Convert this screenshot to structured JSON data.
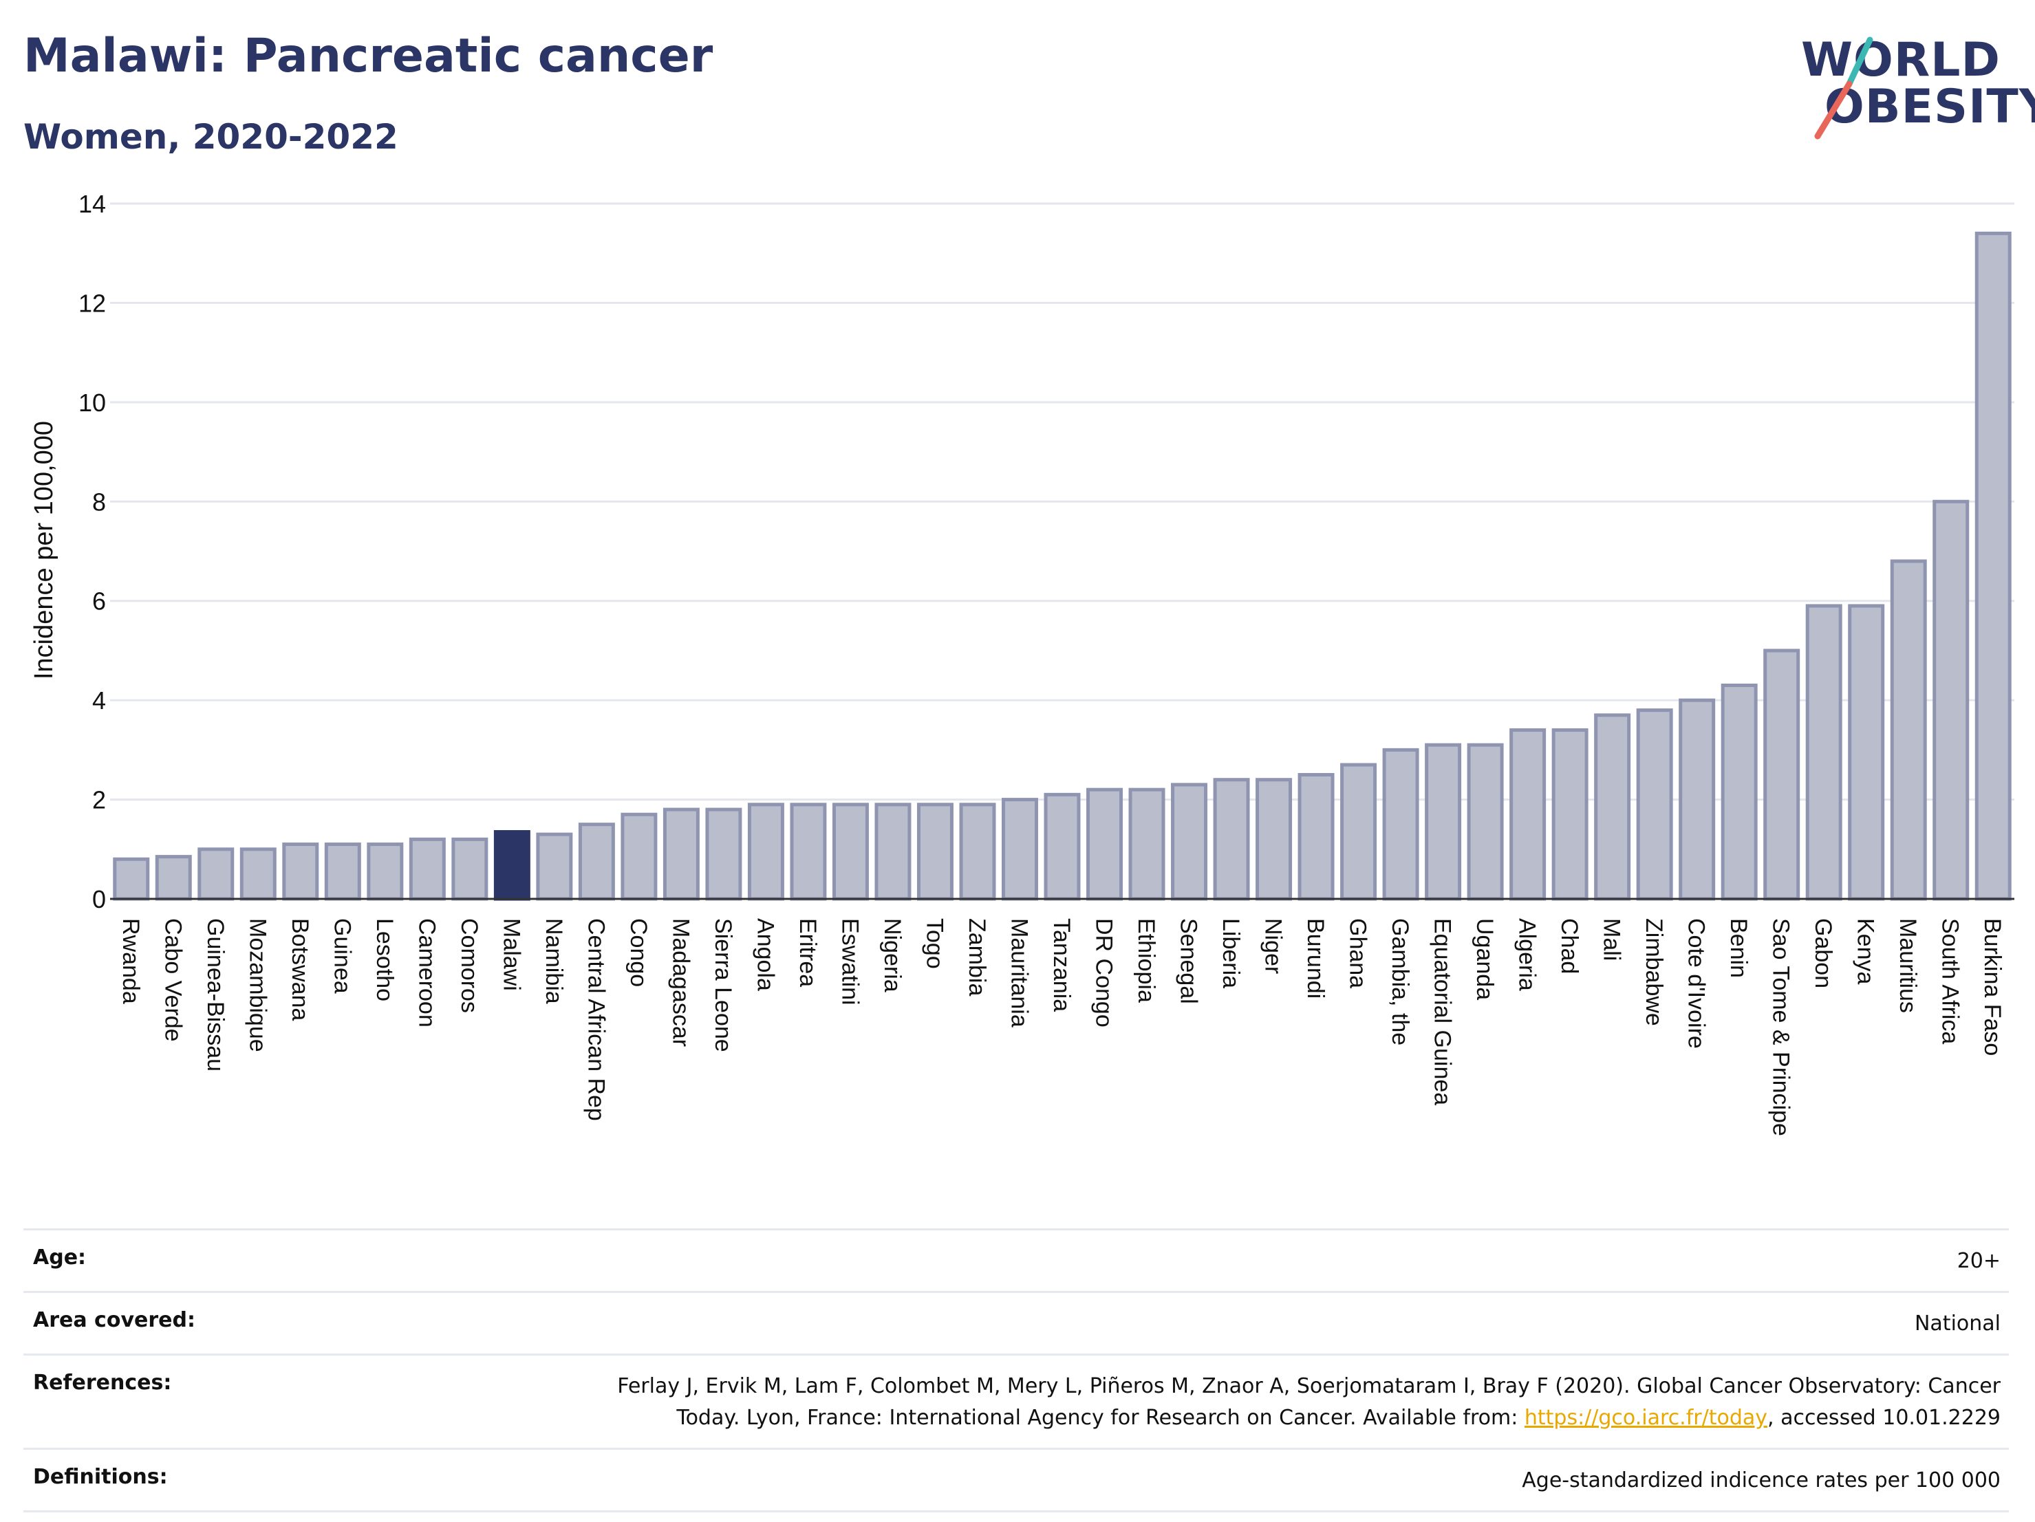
{
  "header": {
    "title": "Malawi: Pancreatic cancer",
    "subtitle": "Women, 2020-2022"
  },
  "logo": {
    "line1": "WORLD",
    "line2": "OBESITY",
    "accent_teal": "#3bb8b3",
    "accent_red": "#e8665a"
  },
  "colors": {
    "bar": "#b9bdcc",
    "bar_border": "#8f95b0",
    "highlight": "#2b3566"
  },
  "chart_data": {
    "type": "bar",
    "ylabel": "Incidence per 100,000",
    "ylim": [
      0,
      14
    ],
    "yticks": [
      0,
      2,
      4,
      6,
      8,
      10,
      12,
      14
    ],
    "highlight": "Malawi",
    "grid": true,
    "categories": [
      "Rwanda",
      "Cabo Verde",
      "Guinea-Bissau",
      "Mozambique",
      "Botswana",
      "Guinea",
      "Lesotho",
      "Cameroon",
      "Comoros",
      "Malawi",
      "Namibia",
      "Central African Rep",
      "Congo",
      "Madagascar",
      "Sierra Leone",
      "Angola",
      "Eritrea",
      "Eswatini",
      "Nigeria",
      "Togo",
      "Zambia",
      "Mauritania",
      "Tanzania",
      "DR Congo",
      "Ethiopia",
      "Senegal",
      "Liberia",
      "Niger",
      "Burundi",
      "Ghana",
      "Gambia, the",
      "Equatorial Guinea",
      "Uganda",
      "Algeria",
      "Chad",
      "Mali",
      "Zimbabwe",
      "Cote d'Ivoire",
      "Benin",
      "Sao Tome & Principe",
      "Gabon",
      "Kenya",
      "Mauritius",
      "South Africa",
      "Burkina Faso"
    ],
    "values": [
      0.8,
      0.85,
      1.0,
      1.0,
      1.1,
      1.1,
      1.1,
      1.2,
      1.2,
      1.35,
      1.3,
      1.5,
      1.7,
      1.8,
      1.8,
      1.9,
      1.9,
      1.9,
      1.9,
      1.9,
      1.9,
      2.0,
      2.1,
      2.2,
      2.2,
      2.3,
      2.4,
      2.4,
      2.5,
      2.7,
      3.0,
      3.1,
      3.1,
      3.4,
      3.4,
      3.7,
      3.8,
      4.0,
      4.3,
      5.0,
      5.9,
      5.9,
      6.8,
      8.0,
      13.4
    ]
  },
  "meta": {
    "age_label": "Age:",
    "age_value": "20+",
    "area_label": "Area covered:",
    "area_value": "National",
    "references_label": "References:",
    "references_line1": "Ferlay J, Ervik M, Lam F, Colombet M, Mery L, Piñeros M, Znaor A, Soerjomataram I, Bray F (2020). Global Cancer Observatory: Cancer",
    "references_line2_pre": "Today. Lyon, France: International Agency for Research on Cancer. Available from: ",
    "references_link": "https://gco.iarc.fr/today",
    "references_line2_post": ", accessed 10.01.2229",
    "definitions_label": "Definitions:",
    "definitions_value": "Age-standardized indicence rates per 100 000"
  }
}
